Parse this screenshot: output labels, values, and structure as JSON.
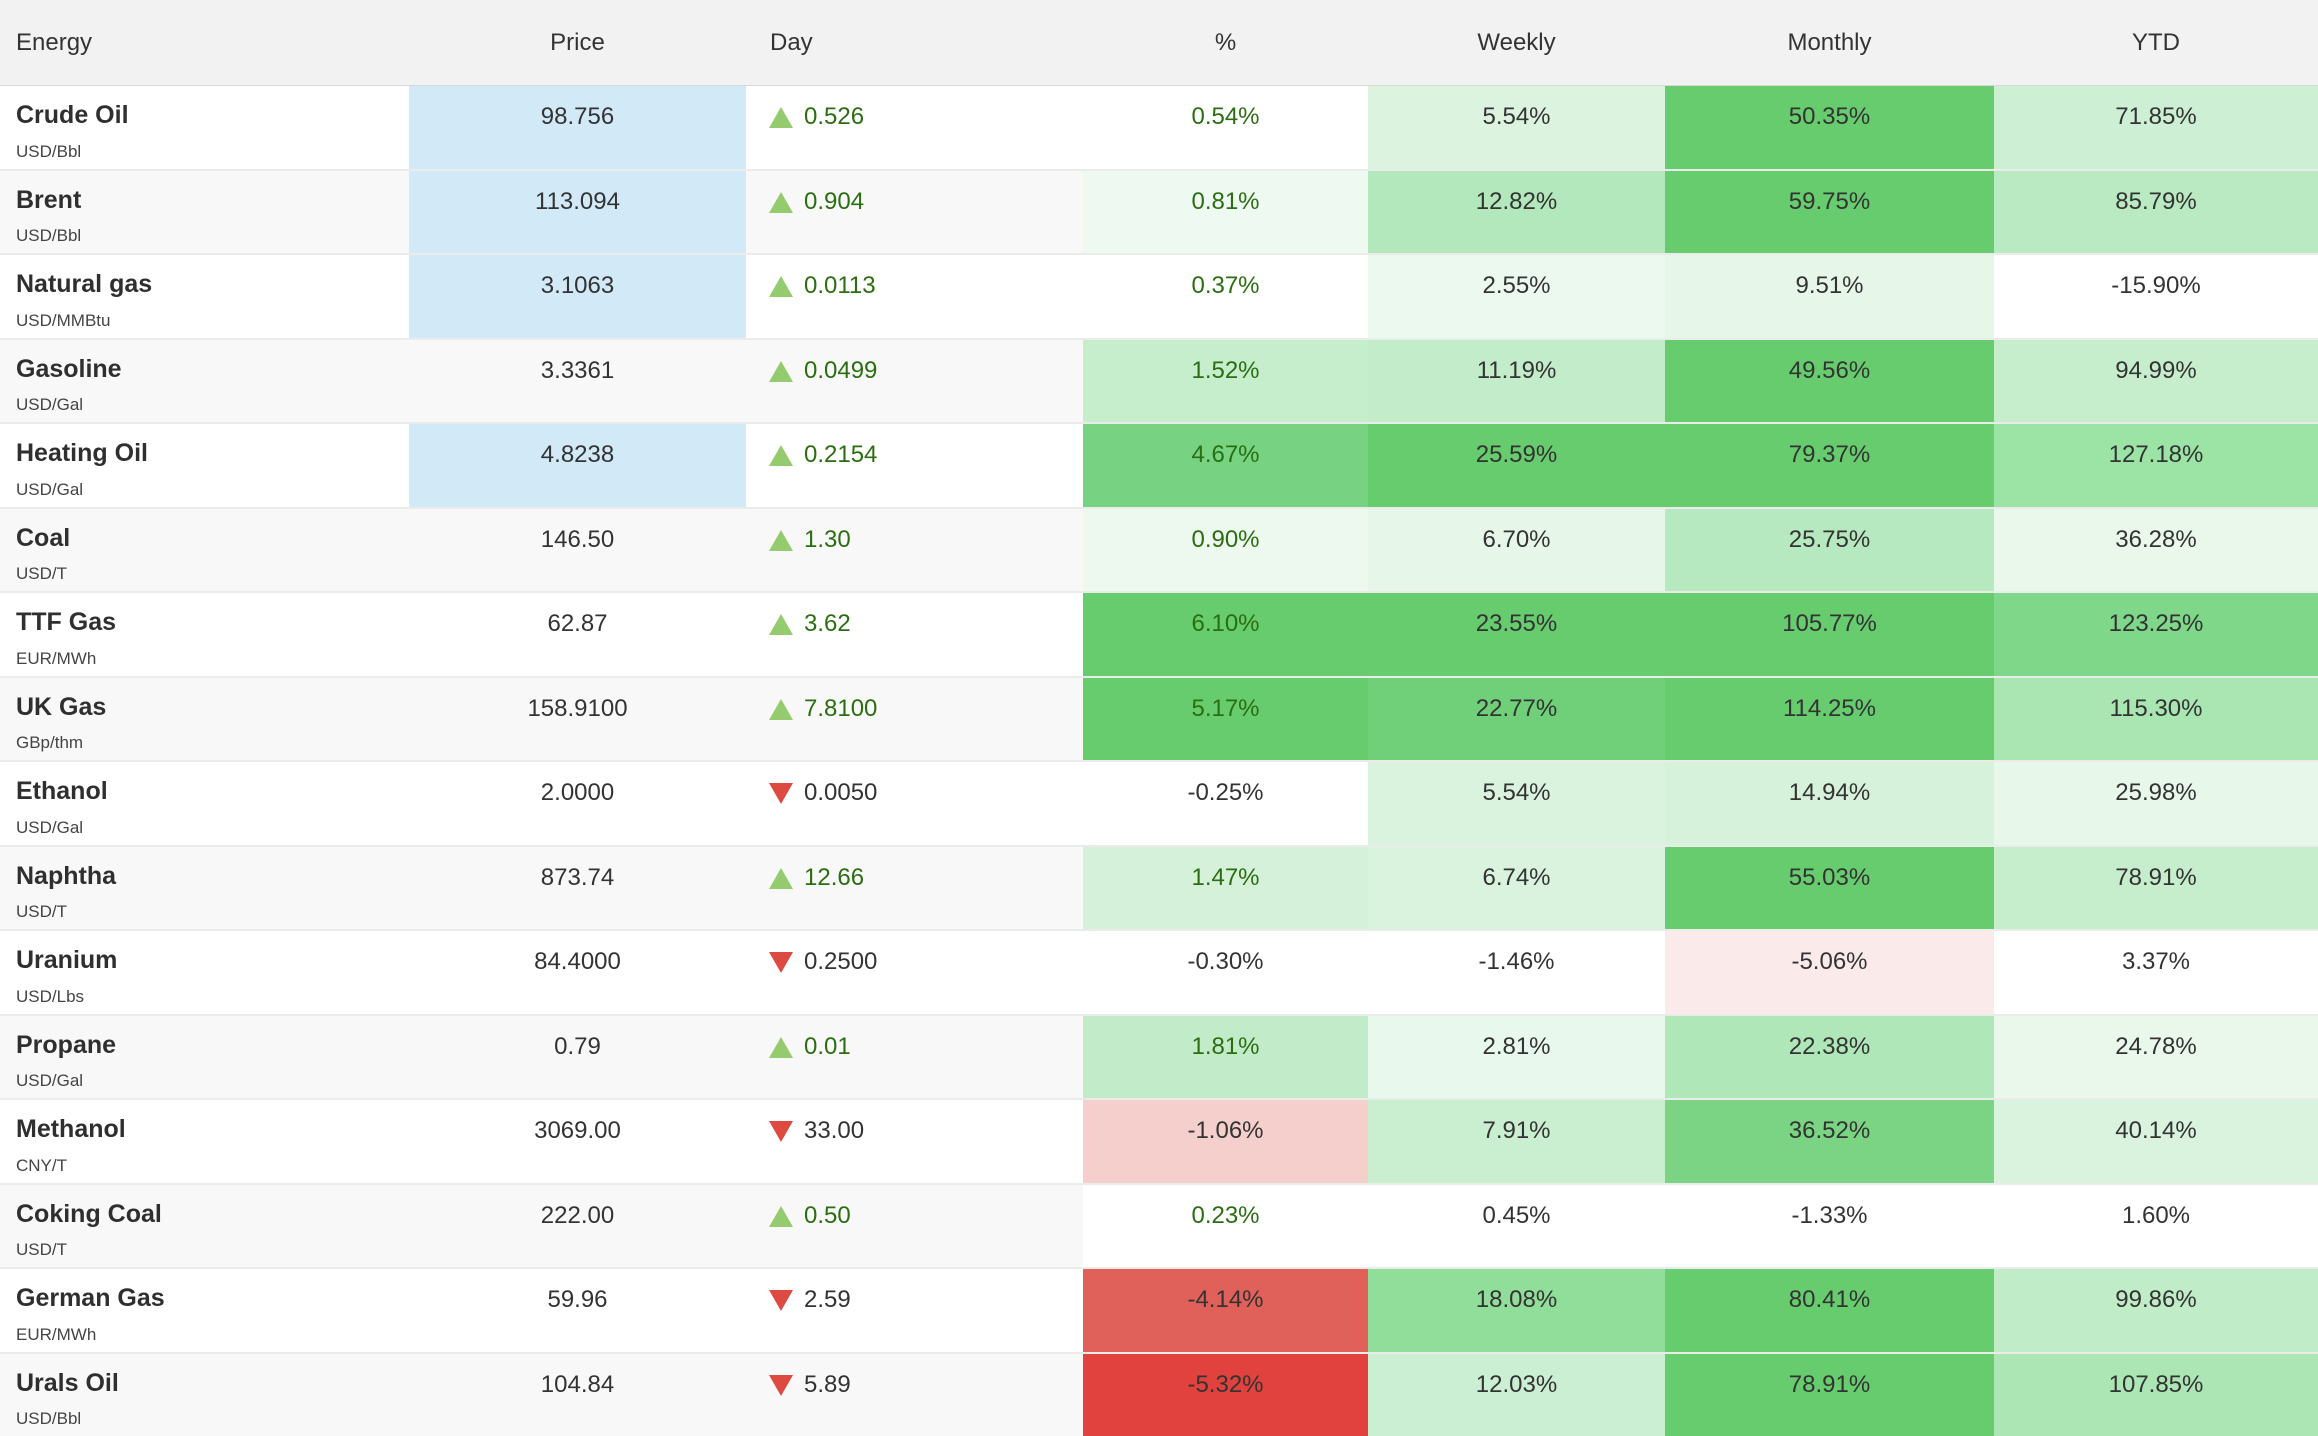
{
  "header": {
    "columns": [
      "Energy",
      "Price",
      "Day",
      "%",
      "Weekly",
      "Monthly",
      "YTD"
    ]
  },
  "colors": {
    "up_text": "#2b6e12",
    "up_triangle": "#95cb6f",
    "down_text": "#333333",
    "down_triangle": "#dd4a40",
    "heat_strong_green": "#66cc6e",
    "heat_strong_red": "#e2423d",
    "price_flash_blue": "#d2e9f7",
    "header_bg": "#f2f2f2",
    "row_stripe": "#f8f8f8"
  },
  "rows": [
    {
      "name": "Crude Oil",
      "unit": "USD/Bbl",
      "price": "98.756",
      "price_flash": "flash",
      "day": "0.526",
      "day_dir": "up",
      "pct": "0.54%",
      "pct_dir": "pos",
      "weekly": "5.54%",
      "monthly": "50.35%",
      "ytd": "71.85%",
      "bg": {
        "pct": "",
        "weekly": "#dcf3e0",
        "monthly": "#66cc6e",
        "ytd": "#cdf0d5"
      }
    },
    {
      "name": "Brent",
      "unit": "USD/Bbl",
      "price": "113.094",
      "price_flash": "flash",
      "day": "0.904",
      "day_dir": "up",
      "pct": "0.81%",
      "pct_dir": "pos",
      "weekly": "12.82%",
      "monthly": "59.75%",
      "ytd": "85.79%",
      "bg": {
        "pct": "#eefaf1",
        "weekly": "#b2e8bb",
        "monthly": "#66cc6e",
        "ytd": "#b9eac2"
      }
    },
    {
      "name": "Natural gas",
      "unit": "USD/MMBtu",
      "price": "3.1063",
      "price_flash": "flash",
      "day": "0.0113",
      "day_dir": "up",
      "pct": "0.37%",
      "pct_dir": "pos",
      "weekly": "2.55%",
      "monthly": "9.51%",
      "ytd": "-15.90%",
      "bg": {
        "pct": "",
        "weekly": "#ecf9ee",
        "monthly": "#e6f7e9",
        "ytd": ""
      }
    },
    {
      "name": "Gasoline",
      "unit": "USD/Gal",
      "price": "3.3361",
      "price_flash": "",
      "day": "0.0499",
      "day_dir": "up",
      "pct": "1.52%",
      "pct_dir": "pos",
      "weekly": "11.19%",
      "monthly": "49.56%",
      "ytd": "94.99%",
      "bg": {
        "pct": "#c6eecd",
        "weekly": "#c3edca",
        "monthly": "#66cc6e",
        "ytd": "#c6eecd"
      }
    },
    {
      "name": "Heating Oil",
      "unit": "USD/Gal",
      "price": "4.8238",
      "price_flash": "flash",
      "day": "0.2154",
      "day_dir": "up",
      "pct": "4.67%",
      "pct_dir": "pos",
      "weekly": "25.59%",
      "monthly": "79.37%",
      "ytd": "127.18%",
      "bg": {
        "pct": "#77d381",
        "weekly": "#66cc6e",
        "monthly": "#66cc6e",
        "ytd": "#9ce3a6"
      }
    },
    {
      "name": "Coal",
      "unit": "USD/T",
      "price": "146.50",
      "price_flash": "",
      "day": "1.30",
      "day_dir": "up",
      "pct": "0.90%",
      "pct_dir": "pos",
      "weekly": "6.70%",
      "monthly": "25.75%",
      "ytd": "36.28%",
      "bg": {
        "pct": "#edf9ef",
        "weekly": "#e6f7e9",
        "monthly": "#b6e9bf",
        "ytd": "#eaf8ec"
      }
    },
    {
      "name": "TTF Gas",
      "unit": "EUR/MWh",
      "price": "62.87",
      "price_flash": "",
      "day": "3.62",
      "day_dir": "up",
      "pct": "6.10%",
      "pct_dir": "pos",
      "weekly": "23.55%",
      "monthly": "105.77%",
      "ytd": "123.25%",
      "bg": {
        "pct": "#66cc6e",
        "weekly": "#66cc6e",
        "monthly": "#66cc6e",
        "ytd": "#7fd789"
      }
    },
    {
      "name": "UK Gas",
      "unit": "GBp/thm",
      "price": "158.9100",
      "price_flash": "",
      "day": "7.8100",
      "day_dir": "up",
      "pct": "5.17%",
      "pct_dir": "pos",
      "weekly": "22.77%",
      "monthly": "114.25%",
      "ytd": "115.30%",
      "bg": {
        "pct": "#66cc6e",
        "weekly": "#70d079",
        "monthly": "#66cc6e",
        "ytd": "#a9e6b2"
      }
    },
    {
      "name": "Ethanol",
      "unit": "USD/Gal",
      "price": "2.0000",
      "price_flash": "",
      "day": "0.0050",
      "day_dir": "down",
      "pct": "-0.25%",
      "pct_dir": "neg",
      "weekly": "5.54%",
      "monthly": "14.94%",
      "ytd": "25.98%",
      "bg": {
        "pct": "",
        "weekly": "#daf3df",
        "monthly": "#d6f2db",
        "ytd": "#e7f8ea"
      }
    },
    {
      "name": "Naphtha",
      "unit": "USD/T",
      "price": "873.74",
      "price_flash": "",
      "day": "12.66",
      "day_dir": "up",
      "pct": "1.47%",
      "pct_dir": "pos",
      "weekly": "6.74%",
      "monthly": "55.03%",
      "ytd": "78.91%",
      "bg": {
        "pct": "#d5f1da",
        "weekly": "#daf3df",
        "monthly": "#66cc6e",
        "ytd": "#c6eecd"
      }
    },
    {
      "name": "Uranium",
      "unit": "USD/Lbs",
      "price": "84.4000",
      "price_flash": "",
      "day": "0.2500",
      "day_dir": "down",
      "pct": "-0.30%",
      "pct_dir": "neg",
      "weekly": "-1.46%",
      "monthly": "-5.06%",
      "ytd": "3.37%",
      "bg": {
        "pct": "",
        "weekly": "",
        "monthly": "#faeae9",
        "ytd": ""
      }
    },
    {
      "name": "Propane",
      "unit": "USD/Gal",
      "price": "0.79",
      "price_flash": "",
      "day": "0.01",
      "day_dir": "up",
      "pct": "1.81%",
      "pct_dir": "pos",
      "weekly": "2.81%",
      "monthly": "22.38%",
      "ytd": "24.78%",
      "bg": {
        "pct": "#c2ecc9",
        "weekly": "#e9f8ec",
        "monthly": "#afe7b8",
        "ytd": "#e9f8eb"
      }
    },
    {
      "name": "Methanol",
      "unit": "CNY/T",
      "price": "3069.00",
      "price_flash": "",
      "day": "33.00",
      "day_dir": "down",
      "pct": "-1.06%",
      "pct_dir": "neg",
      "weekly": "7.91%",
      "monthly": "36.52%",
      "ytd": "40.14%",
      "bg": {
        "pct": "#f5cfcc",
        "weekly": "#c9eed0",
        "monthly": "#7ad483",
        "ytd": "#d9f3de"
      }
    },
    {
      "name": "Coking Coal",
      "unit": "USD/T",
      "price": "222.00",
      "price_flash": "",
      "day": "0.50",
      "day_dir": "up",
      "pct": "0.23%",
      "pct_dir": "pos",
      "weekly": "0.45%",
      "monthly": "-1.33%",
      "ytd": "1.60%",
      "bg": {
        "pct": "#ffffff",
        "weekly": "#ffffff",
        "monthly": "#ffffff",
        "ytd": "#ffffff"
      }
    },
    {
      "name": "German Gas",
      "unit": "EUR/MWh",
      "price": "59.96",
      "price_flash": "",
      "day": "2.59",
      "day_dir": "down",
      "pct": "-4.14%",
      "pct_dir": "neg",
      "weekly": "18.08%",
      "monthly": "80.41%",
      "ytd": "99.86%",
      "bg": {
        "pct": "#e0615a",
        "weekly": "#91de9b",
        "monthly": "#66cc6e",
        "ytd": "#c0ecc7"
      }
    },
    {
      "name": "Urals Oil",
      "unit": "USD/Bbl",
      "price": "104.84",
      "price_flash": "",
      "day": "5.89",
      "day_dir": "down",
      "pct": "-5.32%",
      "pct_dir": "neg",
      "weekly": "12.03%",
      "monthly": "78.91%",
      "ytd": "107.85%",
      "bg": {
        "pct": "#e2423d",
        "weekly": "#cbefd2",
        "monthly": "#66cc6e",
        "ytd": "#abe6b4"
      }
    }
  ]
}
